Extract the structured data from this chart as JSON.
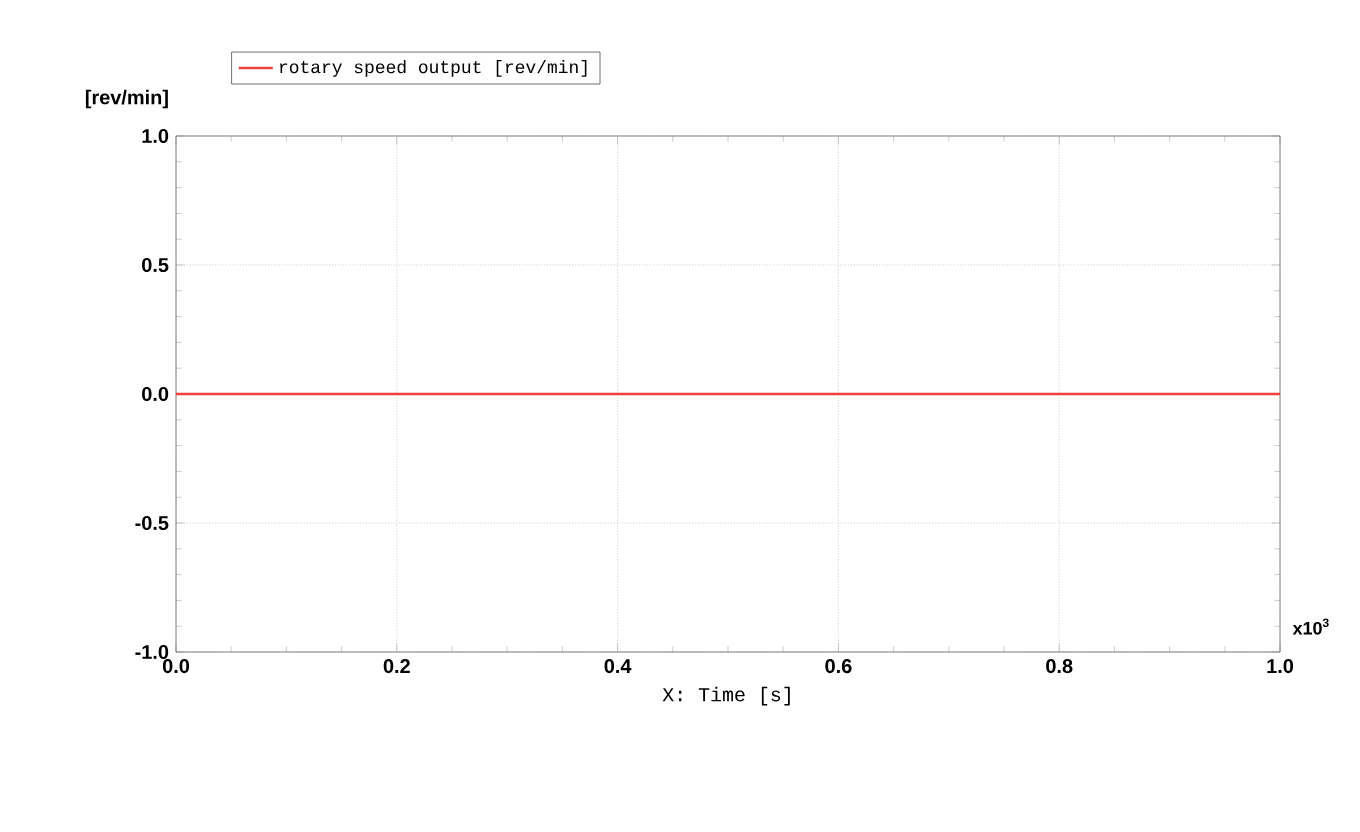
{
  "chart_data": {
    "type": "line",
    "xlabel": "X: Time [s]",
    "ylabel": "[rev/min]",
    "x": [
      0,
      1
    ],
    "series": [
      {
        "name": "rotary speed output [rev/min]",
        "color": "#f04040",
        "values": [
          0,
          0
        ]
      }
    ],
    "xlim": [
      0,
      1
    ],
    "ylim": [
      -1,
      1
    ],
    "xticks": [
      {
        "value": 0,
        "label": "0.0"
      },
      {
        "value": 0.2,
        "label": "0.2"
      },
      {
        "value": 0.4,
        "label": "0.4"
      },
      {
        "value": 0.6,
        "label": "0.6"
      },
      {
        "value": 0.8,
        "label": "0.8"
      },
      {
        "value": 1,
        "label": "1.0"
      }
    ],
    "yticks": [
      {
        "value": -1,
        "label": "-1.0"
      },
      {
        "value": -0.5,
        "label": "-0.5"
      },
      {
        "value": 0,
        "label": "0.0"
      },
      {
        "value": 0.5,
        "label": "0.5"
      },
      {
        "value": 1,
        "label": "1.0"
      }
    ],
    "grid": true,
    "legend": "top left",
    "annotations": [
      "x10$^{3}$"
    ]
  }
}
